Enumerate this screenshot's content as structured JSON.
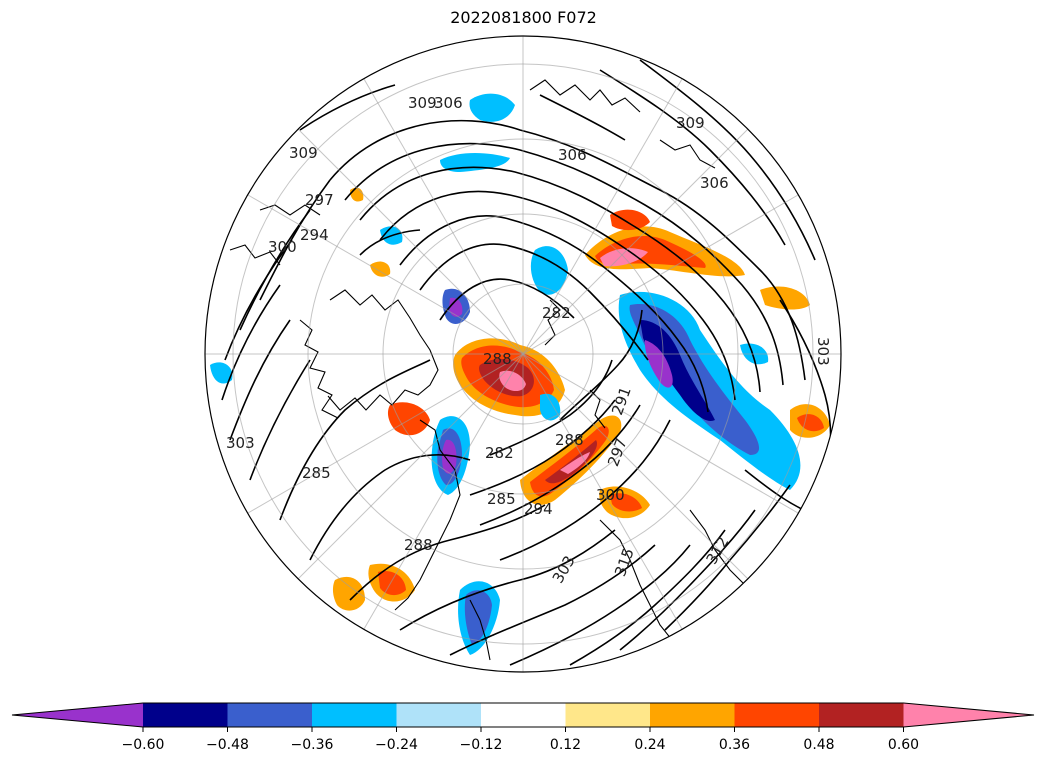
{
  "title": "2022081800 F072",
  "colorbar": {
    "colors": [
      "#9932cc",
      "#00008b",
      "#3a5fcd",
      "#00bfff",
      "#afe2f9",
      "#ffffff",
      "#ffe78a",
      "#ffa500",
      "#ff4500",
      "#b22222",
      "#ff82ab"
    ],
    "tick_labels": [
      "−0.60",
      "−0.48",
      "−0.36",
      "−0.24",
      "−0.12",
      "0.12",
      "0.24",
      "0.36",
      "0.48",
      "0.60"
    ]
  },
  "contour_labels": [
    "309",
    "306",
    "309",
    "306",
    "309",
    "303",
    "297",
    "300",
    "294",
    "282",
    "288",
    "282",
    "285",
    "288",
    "294",
    "291",
    "297",
    "300",
    "303",
    "306",
    "312",
    "315",
    "285",
    "288",
    "303"
  ]
}
